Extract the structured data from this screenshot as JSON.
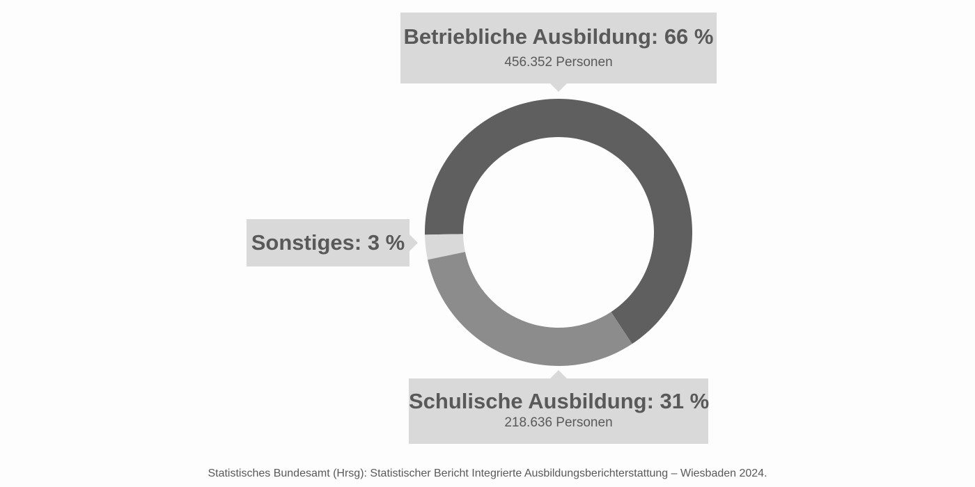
{
  "chart_data": {
    "type": "pie",
    "variant": "donut",
    "segments": [
      {
        "label": "Betriebliche Ausbildung",
        "value": 66,
        "display": "Betriebliche Ausbildung: 66 %",
        "count": "456.352 Personen",
        "color": "#5f5f5f"
      },
      {
        "label": "Schulische Ausbildung",
        "value": 31,
        "display": "Schulische Ausbildung: 31 %",
        "count": "218.636 Personen",
        "color": "#8c8c8c"
      },
      {
        "label": "Sonstiges",
        "value": 3,
        "display": "Sonstiges: 3 %",
        "color": "#d9d9d9"
      }
    ],
    "legend": "none"
  },
  "source": "Statistisches Bundesamt (Hrsg): Statistischer Bericht Integrierte Ausbildungsberichterstattung – Wiesbaden 2024."
}
